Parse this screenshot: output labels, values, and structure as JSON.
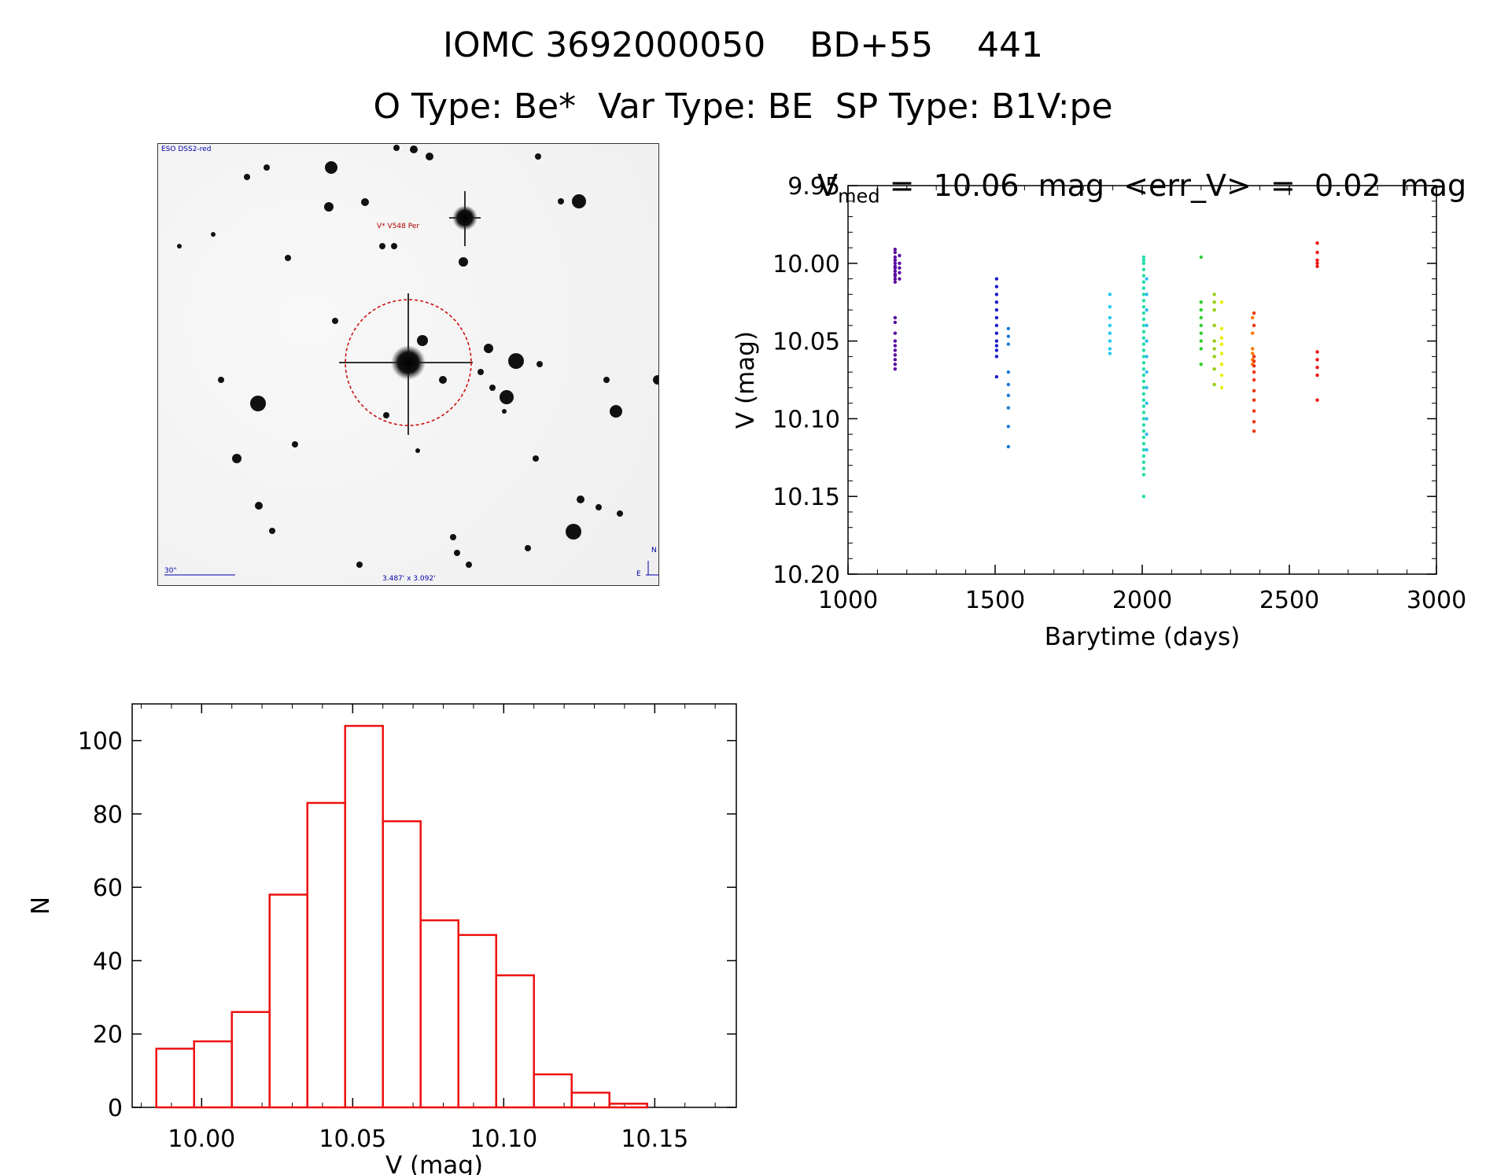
{
  "header": {
    "line1": "IOMC 3692000050    BD+55    441",
    "line2": "O Type: Be*  Var Type: BE  SP Type: B1V:pe"
  },
  "image_panel": {
    "survey_label": "ESO DSS2-red",
    "target_label": "V* V548 Per",
    "scale_label": "30\"",
    "size_label": "3.487' x 3.092'",
    "north_label": "N",
    "east_label": "E"
  },
  "chart_data": [
    {
      "type": "scatter",
      "title_prefix": "V",
      "title_sub": "med",
      "title_rest": " =  10.06  mag  <err_V>  =  0.02  mag",
      "xlabel": "Barytime (days)",
      "ylabel": "V (mag)",
      "xlim": [
        1000,
        3000
      ],
      "ylim": [
        10.2,
        9.95
      ],
      "y_inverted": true,
      "xticks": [
        1000,
        1500,
        2000,
        2500,
        3000
      ],
      "yticks": [
        "9.95",
        "10.00",
        "10.05",
        "10.10",
        "10.15",
        "10.20"
      ],
      "groups": [
        {
          "x": 1160,
          "color": "#5a0aa0",
          "y": [
            9.991,
            9.993,
            9.996,
            9.998,
            10.0,
            10.002,
            10.003,
            10.005,
            10.007,
            10.008,
            10.01,
            10.012,
            10.035,
            10.038,
            10.045,
            10.05,
            10.053,
            10.056,
            10.059,
            10.062,
            10.065,
            10.068
          ]
        },
        {
          "x": 1175,
          "color": "#5a0aa0",
          "y": [
            9.995,
            10.0,
            10.003,
            10.006,
            10.01
          ]
        },
        {
          "x": 1505,
          "color": "#1a1acc",
          "y": [
            10.01,
            10.015,
            10.02,
            10.025,
            10.03,
            10.035,
            10.04,
            10.045,
            10.05,
            10.053,
            10.056,
            10.06,
            10.073
          ]
        },
        {
          "x": 1545,
          "color": "#1a7ad8",
          "y": [
            10.042,
            10.047,
            10.052,
            10.07,
            10.078,
            10.085,
            10.093,
            10.105,
            10.118
          ]
        },
        {
          "x": 1890,
          "color": "#22ccee",
          "y": [
            10.02,
            10.028,
            10.035,
            10.04,
            10.045,
            10.05,
            10.055,
            10.058
          ]
        },
        {
          "x": 2005,
          "color": "#22ddaa",
          "y": [
            9.996,
            9.998,
            10.0,
            10.004,
            10.008,
            10.012,
            10.016,
            10.02,
            10.024,
            10.028,
            10.032,
            10.036,
            10.04,
            10.044,
            10.048,
            10.052,
            10.056,
            10.06,
            10.064,
            10.068,
            10.072,
            10.076,
            10.08,
            10.084,
            10.088,
            10.092,
            10.096,
            10.1,
            10.104,
            10.108,
            10.112,
            10.116,
            10.12,
            10.124,
            10.128,
            10.132,
            10.136,
            10.15
          ]
        },
        {
          "x": 2015,
          "color": "#33bbee",
          "y": [
            10.01,
            10.02,
            10.03,
            10.04,
            10.05,
            10.06,
            10.07,
            10.08,
            10.09,
            10.1,
            10.11,
            10.12
          ]
        },
        {
          "x": 2200,
          "color": "#33cc33",
          "y": [
            9.996,
            10.025,
            10.03,
            10.035,
            10.04,
            10.045,
            10.05,
            10.055,
            10.065
          ]
        },
        {
          "x": 2245,
          "color": "#99cc11",
          "y": [
            10.02,
            10.025,
            10.03,
            10.04,
            10.05,
            10.055,
            10.06,
            10.068,
            10.078
          ]
        },
        {
          "x": 2270,
          "color": "#eeee00",
          "y": [
            10.025,
            10.042,
            10.048,
            10.052,
            10.058,
            10.065,
            10.072,
            10.08
          ]
        },
        {
          "x": 2375,
          "color": "#ff7700",
          "y": [
            10.035,
            10.045,
            10.055,
            10.058,
            10.062,
            10.065
          ]
        },
        {
          "x": 2380,
          "color": "#ee3311",
          "y": [
            10.032,
            10.04,
            10.06,
            10.063,
            10.066,
            10.07,
            10.075,
            10.082,
            10.088,
            10.095,
            10.102,
            10.108
          ]
        },
        {
          "x": 2595,
          "color": "#ee1111",
          "y": [
            9.987,
            9.993,
            9.998,
            10.0,
            10.002,
            10.057,
            10.062,
            10.067,
            10.072,
            10.088
          ]
        }
      ]
    },
    {
      "type": "bar",
      "xlabel": "V (mag)",
      "ylabel": "N",
      "xlim": [
        9.977,
        10.177
      ],
      "ylim": [
        0,
        110
      ],
      "xticks": [
        "10.00",
        "10.05",
        "10.10",
        "10.15"
      ],
      "yticks": [
        "0",
        "20",
        "40",
        "60",
        "80",
        "100"
      ],
      "bar_color": "#ee1111",
      "bin_edges": [
        9.985,
        9.9975,
        10.01,
        10.0225,
        10.035,
        10.0475,
        10.06,
        10.0725,
        10.085,
        10.0975,
        10.11,
        10.1225,
        10.135,
        10.1475
      ],
      "bin_width": 0.0125,
      "values": [
        16,
        18,
        26,
        58,
        83,
        104,
        78,
        51,
        47,
        36,
        9,
        4,
        1
      ]
    }
  ]
}
